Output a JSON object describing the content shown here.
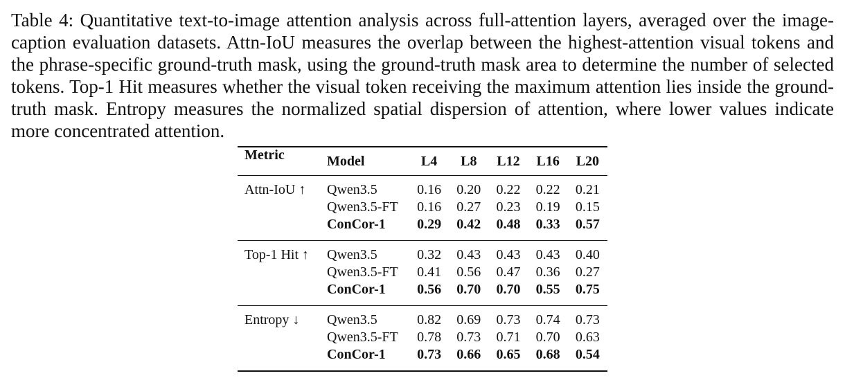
{
  "caption": "Table 4: Quantitative text-to-image attention analysis across full-attention layers, averaged over the image-caption evaluation datasets. Attn-IoU measures the overlap between the highest-attention visual tokens and the phrase-specific ground-truth mask, using the ground-truth mask area to determine the number of selected tokens. Top-1 Hit measures whether the visual token receiving the maximum attention lies inside the ground-truth mask. Entropy measures the normalized spatial dispersion of attention, where lower values indicate more concentrated attention.",
  "table": {
    "header": [
      "Metric",
      "Model",
      "L4",
      "L8",
      "L12",
      "L16",
      "L20"
    ],
    "groups": [
      {
        "metric": "Attn-IoU ↑",
        "rows": [
          {
            "model": "Qwen3.5",
            "values": [
              "0.16",
              "0.20",
              "0.22",
              "0.22",
              "0.21"
            ]
          },
          {
            "model": "Qwen3.5-FT",
            "values": [
              "0.16",
              "0.27",
              "0.23",
              "0.19",
              "0.15"
            ]
          },
          {
            "model": "ConCor-1",
            "values": [
              "0.29",
              "0.42",
              "0.48",
              "0.33",
              "0.57"
            ]
          }
        ]
      },
      {
        "metric": "Top-1 Hit ↑",
        "rows": [
          {
            "model": "Qwen3.5",
            "values": [
              "0.32",
              "0.43",
              "0.43",
              "0.43",
              "0.40"
            ]
          },
          {
            "model": "Qwen3.5-FT",
            "values": [
              "0.41",
              "0.56",
              "0.47",
              "0.36",
              "0.27"
            ]
          },
          {
            "model": "ConCor-1",
            "values": [
              "0.56",
              "0.70",
              "0.70",
              "0.55",
              "0.75"
            ]
          }
        ]
      },
      {
        "metric": "Entropy ↓",
        "rows": [
          {
            "model": "Qwen3.5",
            "values": [
              "0.82",
              "0.69",
              "0.73",
              "0.74",
              "0.73"
            ]
          },
          {
            "model": "Qwen3.5-FT",
            "values": [
              "0.78",
              "0.73",
              "0.71",
              "0.70",
              "0.63"
            ]
          },
          {
            "model": "ConCor-1",
            "values": [
              "0.73",
              "0.66",
              "0.65",
              "0.68",
              "0.54"
            ]
          }
        ]
      }
    ]
  }
}
